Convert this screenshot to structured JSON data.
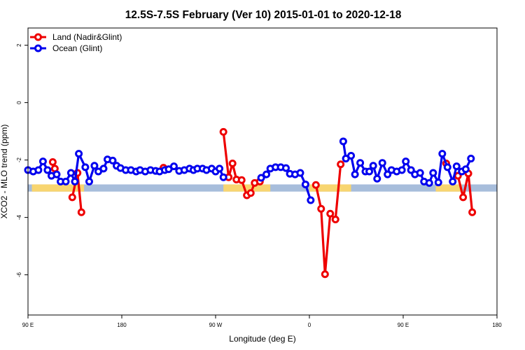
{
  "chart_data": {
    "type": "line",
    "title": "12.5S-7.5S February (Ver 10)   2015-01-01 to 2020-12-18",
    "xlabel": "Longitude (deg E)",
    "ylabel": "XCO2 - MLO trend (ppm)",
    "xlim": [
      90,
      450
    ],
    "ylim": [
      -7.4,
      2.6
    ],
    "x_ticks": [
      {
        "value": 90,
        "label": "90 E"
      },
      {
        "value": 162,
        "label": "180"
      },
      {
        "value": 234,
        "label": "90 W"
      },
      {
        "value": 306,
        "label": "0"
      },
      {
        "value": 378,
        "label": "90 E"
      },
      {
        "value": 450,
        "label": "180"
      }
    ],
    "y_ticks": [
      {
        "value": 2,
        "label": "2"
      },
      {
        "value": 0,
        "label": "0"
      },
      {
        "value": -2,
        "label": "-2"
      },
      {
        "value": -4,
        "label": "-4"
      },
      {
        "value": -6,
        "label": "-6"
      }
    ],
    "legend_position": "top-left",
    "reference_band": {
      "ymin": -3.1,
      "ymax": -2.85,
      "color": "#a7bddb"
    },
    "land_mask": [
      {
        "xmin": 93,
        "xmax": 133
      },
      {
        "xmin": 240,
        "xmax": 276
      },
      {
        "xmin": 306,
        "xmax": 338
      },
      {
        "xmin": 403,
        "xmax": 423
      }
    ],
    "land_mask_color": "#f8d570",
    "series": [
      {
        "name": "Land (Nadir&Glint)",
        "color": "#ee0000",
        "segments": [
          [
            [
              109,
              -2.07
            ],
            [
              110.6,
              -2.3
            ]
          ],
          [
            [
              124,
              -3.3
            ],
            [
              128,
              -2.45
            ],
            [
              131,
              -3.82
            ]
          ],
          [
            [
              194,
              -2.27
            ]
          ],
          [
            [
              240,
              -1.02
            ],
            [
              244,
              -2.6
            ],
            [
              247,
              -2.12
            ],
            [
              250,
              -2.68
            ],
            [
              254,
              -2.7
            ],
            [
              258,
              -3.23
            ],
            [
              261,
              -3.15
            ],
            [
              264,
              -2.8
            ],
            [
              268,
              -2.75
            ]
          ],
          [
            [
              311,
              -2.87
            ],
            [
              315,
              -3.7
            ],
            [
              318,
              -5.98
            ],
            [
              322,
              -3.87
            ],
            [
              326,
              -4.07
            ],
            [
              330,
              -2.15
            ]
          ],
          [
            [
              411,
              -2.12
            ]
          ],
          [
            [
              420,
              -2.55
            ],
            [
              424,
              -3.3
            ],
            [
              428,
              -2.47
            ],
            [
              431,
              -3.82
            ]
          ]
        ]
      },
      {
        "name": "Ocean (Glint)",
        "color": "#0000ee",
        "segments": [
          [
            [
              90,
              -2.35
            ],
            [
              94,
              -2.4
            ],
            [
              98,
              -2.35
            ],
            [
              101.5,
              -2.05
            ],
            [
              105,
              -2.35
            ],
            [
              108,
              -2.55
            ],
            [
              112,
              -2.5
            ],
            [
              115,
              -2.75
            ],
            [
              119,
              -2.75
            ],
            [
              123,
              -2.45
            ],
            [
              126,
              -2.75
            ],
            [
              129,
              -1.78
            ],
            [
              134,
              -2.25
            ],
            [
              137,
              -2.75
            ],
            [
              141,
              -2.2
            ],
            [
              144,
              -2.4
            ],
            [
              148,
              -2.3
            ],
            [
              151,
              -1.98
            ],
            [
              155,
              -2.02
            ],
            [
              158,
              -2.2
            ],
            [
              161,
              -2.28
            ],
            [
              165,
              -2.35
            ],
            [
              169,
              -2.35
            ],
            [
              173,
              -2.4
            ],
            [
              176,
              -2.35
            ],
            [
              180,
              -2.4
            ],
            [
              184,
              -2.35
            ],
            [
              188,
              -2.38
            ],
            [
              191,
              -2.4
            ],
            [
              195,
              -2.35
            ],
            [
              198,
              -2.32
            ],
            [
              202,
              -2.22
            ],
            [
              206,
              -2.38
            ],
            [
              210,
              -2.35
            ],
            [
              214,
              -2.3
            ],
            [
              217,
              -2.35
            ],
            [
              220,
              -2.3
            ],
            [
              224,
              -2.3
            ],
            [
              227,
              -2.35
            ],
            [
              231,
              -2.3
            ],
            [
              234,
              -2.4
            ],
            [
              237,
              -2.3
            ],
            [
              240,
              -2.6
            ]
          ],
          [
            [
              269,
              -2.62
            ],
            [
              273,
              -2.5
            ],
            [
              276,
              -2.3
            ],
            [
              280,
              -2.25
            ],
            [
              284,
              -2.25
            ],
            [
              288,
              -2.28
            ],
            [
              291,
              -2.48
            ],
            [
              295,
              -2.5
            ],
            [
              299,
              -2.45
            ],
            [
              303,
              -2.85
            ],
            [
              307,
              -3.4
            ]
          ],
          [
            [
              332,
              -1.35
            ],
            [
              334,
              -1.95
            ],
            [
              338,
              -1.85
            ],
            [
              341,
              -2.5
            ],
            [
              345,
              -2.1
            ],
            [
              349,
              -2.4
            ],
            [
              352,
              -2.4
            ],
            [
              355,
              -2.2
            ],
            [
              358,
              -2.65
            ],
            [
              362,
              -2.1
            ],
            [
              366,
              -2.5
            ],
            [
              369,
              -2.35
            ],
            [
              373,
              -2.4
            ],
            [
              377,
              -2.35
            ],
            [
              380,
              -2.05
            ],
            [
              384,
              -2.35
            ],
            [
              387,
              -2.5
            ],
            [
              391,
              -2.45
            ],
            [
              394,
              -2.75
            ],
            [
              398,
              -2.8
            ],
            [
              401,
              -2.45
            ],
            [
              405,
              -2.78
            ],
            [
              408,
              -1.78
            ],
            [
              412,
              -2.25
            ],
            [
              416,
              -2.75
            ],
            [
              419,
              -2.22
            ],
            [
              423,
              -2.4
            ],
            [
              426,
              -2.32
            ],
            [
              430,
              -1.95
            ]
          ]
        ]
      }
    ]
  }
}
